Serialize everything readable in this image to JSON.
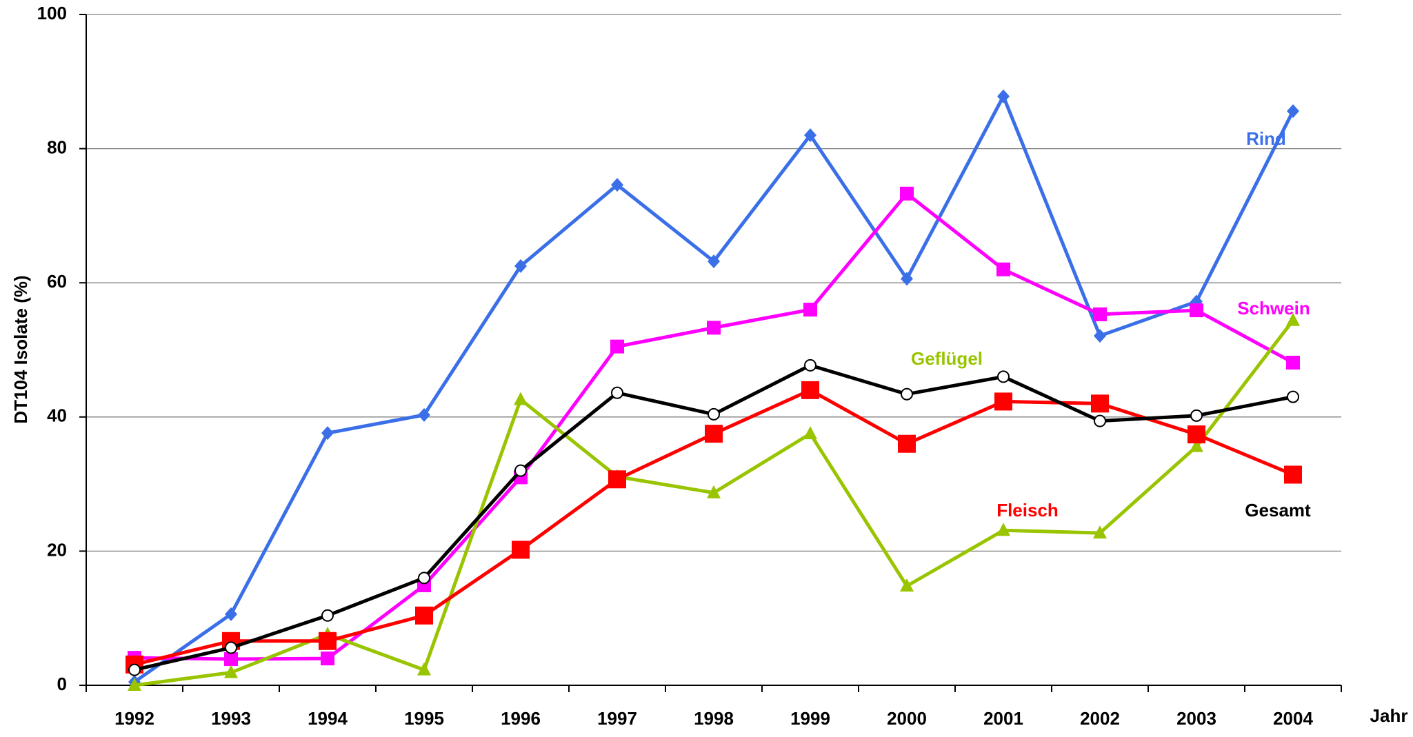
{
  "chart_data": {
    "type": "line",
    "y_label": "DT104 Isolate (%)",
    "x_label": "Jahr",
    "categories": [
      "1992",
      "1993",
      "1994",
      "1995",
      "1996",
      "1997",
      "1998",
      "1999",
      "2000",
      "2001",
      "2002",
      "2003",
      "2004"
    ],
    "ylim": [
      0,
      100
    ],
    "yticks": [
      0,
      20,
      40,
      60,
      80,
      100
    ],
    "grid": true,
    "series": [
      {
        "name": "Rind",
        "color": "#3a6fe8",
        "marker": "diamond",
        "values": [
          0.5,
          10.6,
          37.6,
          40.3,
          62.5,
          74.6,
          63.2,
          82.0,
          60.6,
          87.8,
          52.1,
          57.2,
          85.6
        ]
      },
      {
        "name": "Schwein",
        "color": "#ff00ff",
        "marker": "square",
        "values": [
          4.1,
          3.9,
          4.0,
          14.9,
          31.0,
          50.5,
          53.3,
          56.0,
          73.3,
          62.0,
          55.3,
          55.9,
          48.1
        ]
      },
      {
        "name": "Geflügel",
        "color": "#99c400",
        "marker": "triangle",
        "values": [
          0,
          1.9,
          7.6,
          2.3,
          42.6,
          31.1,
          28.7,
          37.5,
          14.8,
          23.1,
          22.7,
          35.6,
          54.4
        ]
      },
      {
        "name": "Fleisch",
        "color": "#ff0000",
        "marker": "square",
        "values": [
          3.1,
          6.6,
          6.6,
          10.4,
          20.2,
          30.7,
          37.5,
          44.0,
          36.0,
          42.3,
          42.0,
          37.4,
          31.4
        ]
      },
      {
        "name": "Gesamt",
        "color": "#000000",
        "marker": "circle",
        "values": [
          2.3,
          5.6,
          10.4,
          16.0,
          32.0,
          43.6,
          40.4,
          47.7,
          43.4,
          46.0,
          39.4,
          40.2,
          43.0
        ]
      }
    ]
  }
}
